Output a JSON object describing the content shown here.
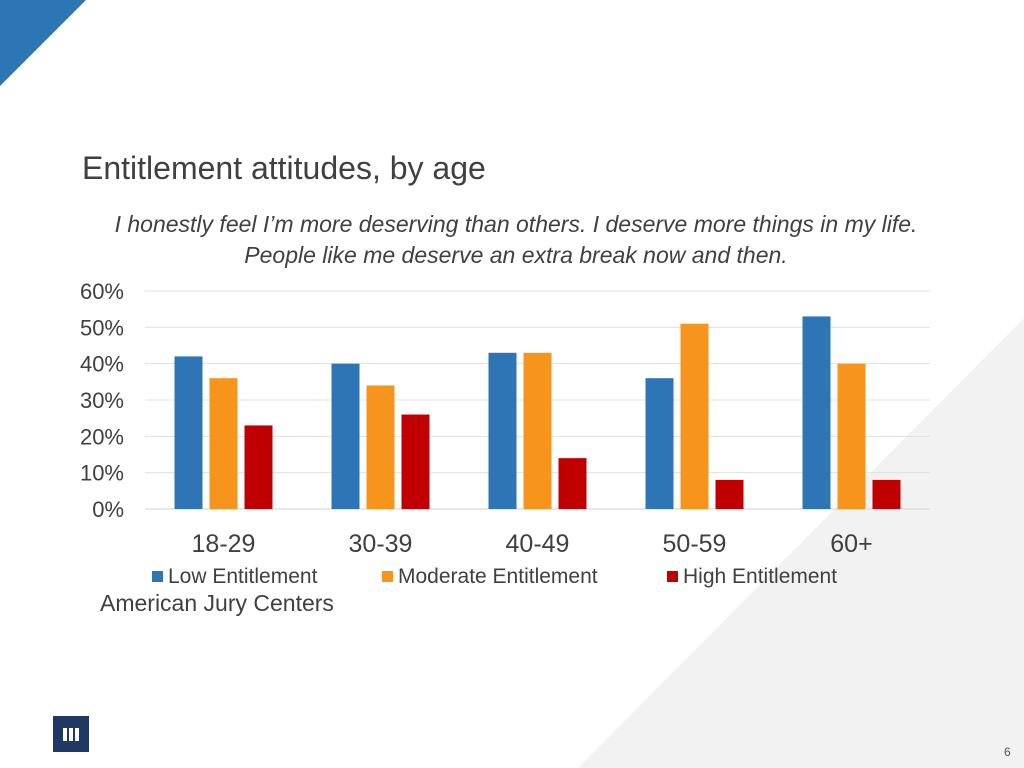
{
  "slide": {
    "title": "Entitlement attitudes, by age",
    "subtitle": "I honestly feel I’m more deserving than others. I deserve more things in my life. People like me deserve an extra break now and then.",
    "source": "American Jury Centers",
    "page_number": "6",
    "logo_icon": "iii-logo-icon",
    "accent_color": "#2e75b6"
  },
  "chart_data": {
    "type": "bar",
    "title": "",
    "xlabel": "",
    "ylabel": "",
    "categories": [
      "18-29",
      "30-39",
      "40-49",
      "50-59",
      "60+"
    ],
    "series": [
      {
        "name": "Low Entitlement",
        "color": "#2e75b6",
        "values": [
          42,
          40,
          43,
          36,
          53
        ]
      },
      {
        "name": "Moderate Entitlement",
        "color": "#f7941d",
        "values": [
          36,
          34,
          43,
          51,
          40
        ]
      },
      {
        "name": "High Entitlement",
        "color": "#c00000",
        "values": [
          23,
          26,
          14,
          8,
          8
        ]
      }
    ],
    "ylim": [
      0,
      60
    ],
    "yticks": [
      0,
      10,
      20,
      30,
      40,
      50,
      60
    ],
    "ytick_labels": [
      "0%",
      "10%",
      "20%",
      "30%",
      "40%",
      "50%",
      "60%"
    ],
    "grid": true,
    "legend_position": "bottom"
  }
}
